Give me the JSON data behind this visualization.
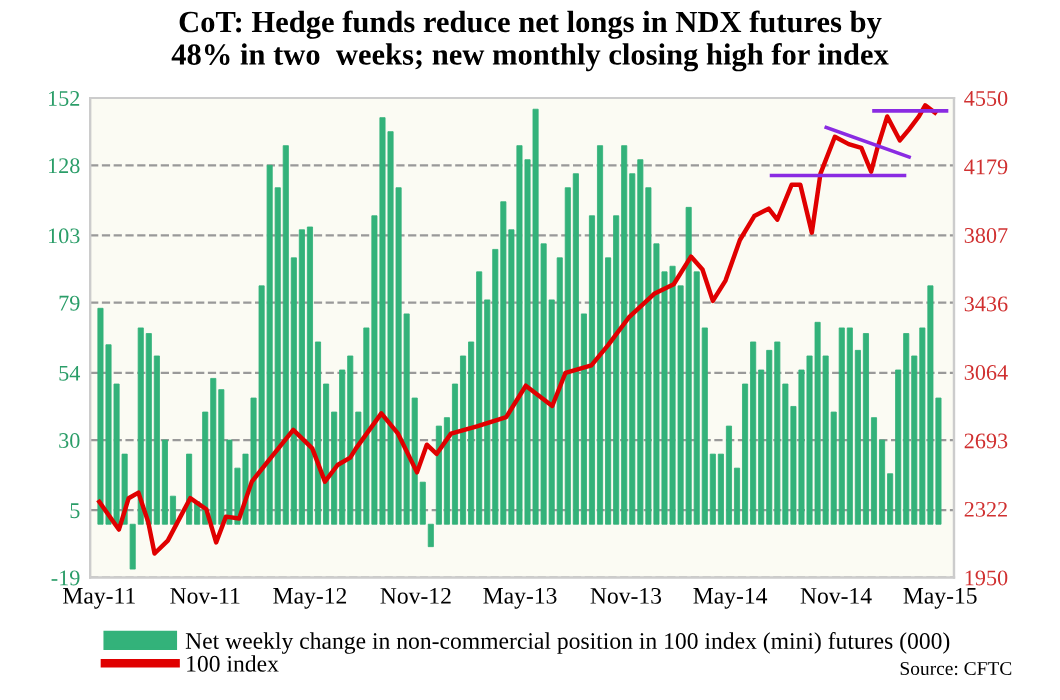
{
  "chart_data": {
    "type": "bar",
    "title": "CoT: Hedge funds reduce net longs in NDX futures by\n48% in two  weeks; new monthly closing high for index",
    "x": [
      "2011-05-03",
      "2011-05-17",
      "2011-05-31",
      "2011-06-14",
      "2011-06-28",
      "2011-07-12",
      "2011-07-26",
      "2011-08-09",
      "2011-08-23",
      "2011-09-06",
      "2011-09-20",
      "2011-10-04",
      "2011-10-18",
      "2011-11-01",
      "2011-11-15",
      "2011-11-29",
      "2011-12-13",
      "2011-12-27",
      "2012-01-10",
      "2012-01-24",
      "2012-02-07",
      "2012-02-21",
      "2012-03-06",
      "2012-03-20",
      "2012-04-03",
      "2012-04-17",
      "2012-05-01",
      "2012-05-15",
      "2012-05-29",
      "2012-06-12",
      "2012-06-26",
      "2012-07-10",
      "2012-07-24",
      "2012-08-07",
      "2012-08-21",
      "2012-09-04",
      "2012-09-18",
      "2012-10-02",
      "2012-10-16",
      "2012-10-30",
      "2012-11-13",
      "2012-11-27",
      "2012-12-11",
      "2012-12-25",
      "2013-01-08",
      "2013-01-22",
      "2013-02-05",
      "2013-02-19",
      "2013-03-05",
      "2013-03-19",
      "2013-04-02",
      "2013-04-16",
      "2013-04-30",
      "2013-05-14",
      "2013-05-28",
      "2013-06-11",
      "2013-06-25",
      "2013-07-09",
      "2013-07-23",
      "2013-08-06",
      "2013-08-20",
      "2013-09-03",
      "2013-09-17",
      "2013-10-01",
      "2013-10-15",
      "2013-10-29",
      "2013-11-12",
      "2013-11-26",
      "2013-12-10",
      "2013-12-24",
      "2014-01-07",
      "2014-01-21",
      "2014-02-04",
      "2014-02-18",
      "2014-03-04",
      "2014-03-18",
      "2014-04-01",
      "2014-04-15",
      "2014-04-29",
      "2014-05-13",
      "2014-05-27",
      "2014-06-10",
      "2014-06-24",
      "2014-07-08",
      "2014-07-22",
      "2014-08-05",
      "2014-08-19",
      "2014-09-02",
      "2014-09-16",
      "2014-09-30",
      "2014-10-14",
      "2014-10-28",
      "2014-11-11",
      "2014-11-25",
      "2014-12-09",
      "2014-12-23",
      "2015-01-06",
      "2015-01-20",
      "2015-02-03",
      "2015-02-17",
      "2015-03-03",
      "2015-03-17",
      "2015-03-31",
      "2015-04-14",
      "2015-04-28"
    ],
    "series": [
      {
        "name": "Net weekly change in non-commercial position in 100 index (mini) futures (000)",
        "color": "#33b27a",
        "values": [
          77,
          64,
          50,
          25,
          -16,
          70,
          68,
          60,
          30,
          10,
          null,
          25,
          8,
          40,
          52,
          48,
          30,
          20,
          25,
          45,
          85,
          128,
          120,
          135,
          95,
          105,
          106,
          65,
          50,
          40,
          55,
          60,
          40,
          70,
          110,
          145,
          140,
          120,
          75,
          45,
          15,
          -8,
          35,
          38,
          50,
          60,
          65,
          90,
          80,
          98,
          115,
          105,
          135,
          130,
          148,
          100,
          80,
          95,
          120,
          125,
          75,
          110,
          135,
          95,
          110,
          135,
          125,
          130,
          120,
          100,
          90,
          92,
          85,
          113,
          90,
          70,
          25,
          25,
          35,
          20,
          50,
          65,
          55,
          62,
          65,
          50,
          42,
          55,
          60,
          72,
          60,
          40,
          70,
          70,
          62,
          68,
          38,
          30,
          18,
          55,
          68,
          60,
          70,
          85,
          45
        ]
      },
      {
        "name": "100 index",
        "type": "line",
        "axis": "y2",
        "color": "#e00000",
        "x": [
          "2011-05-01",
          "2011-06-04",
          "2011-06-21",
          "2011-07-08",
          "2011-07-25",
          "2011-08-05",
          "2011-08-28",
          "2011-09-19",
          "2011-10-06",
          "2011-11-03",
          "2011-11-20",
          "2011-12-07",
          "2011-12-30",
          "2012-01-21",
          "2012-02-18",
          "2012-04-02",
          "2012-05-05",
          "2012-05-27",
          "2012-06-18",
          "2012-07-10",
          "2012-07-20",
          "2012-09-02",
          "2012-10-01",
          "2012-11-03",
          "2012-11-20",
          "2012-12-07",
          "2013-01-01",
          "2013-02-15",
          "2013-04-07",
          "2013-05-11",
          "2013-06-26",
          "2013-07-19",
          "2013-09-02",
          "2013-10-01",
          "2013-11-06",
          "2013-12-21",
          "2014-01-23",
          "2014-02-22",
          "2014-03-14",
          "2014-04-01",
          "2014-04-23",
          "2014-05-18",
          "2014-06-12",
          "2014-07-07",
          "2014-07-22",
          "2014-08-16",
          "2014-08-31",
          "2014-09-20",
          "2014-10-05",
          "2014-10-30",
          "2014-11-23",
          "2014-12-15",
          "2015-01-01",
          "2015-01-12",
          "2015-01-29",
          "2015-02-20",
          "2015-03-08",
          "2015-03-25",
          "2015-04-05",
          "2015-04-22"
        ],
        "values": [
          2360,
          2210,
          2380,
          2410,
          2250,
          2080,
          2150,
          2280,
          2380,
          2320,
          2140,
          2280,
          2270,
          2470,
          2580,
          2750,
          2650,
          2470,
          2560,
          2600,
          2650,
          2840,
          2730,
          2520,
          2670,
          2620,
          2730,
          2770,
          2820,
          2990,
          2880,
          3060,
          3100,
          3210,
          3360,
          3490,
          3540,
          3690,
          3620,
          3450,
          3560,
          3780,
          3910,
          3950,
          3890,
          4080,
          4080,
          3820,
          4140,
          4340,
          4300,
          4280,
          4150,
          4280,
          4450,
          4320,
          4380,
          4450,
          4510,
          4470
        ]
      },
      {
        "type": "line",
        "axis": "y2",
        "color": "#8a2be2",
        "x": [
          "2014-07-12",
          "2015-02-28"
        ],
        "values": [
          4130,
          4130
        ]
      },
      {
        "type": "line",
        "axis": "y2",
        "color": "#8a2be2",
        "x": [
          "2014-10-15",
          "2015-03-08"
        ],
        "values": [
          4390,
          4230
        ]
      },
      {
        "type": "line",
        "axis": "y2",
        "color": "#8a2be2",
        "x": [
          "2015-01-06",
          "2015-05-12"
        ],
        "values": [
          4480,
          4480
        ]
      }
    ],
    "xlim": [
      "2011-04-15",
      "2015-05-25"
    ],
    "xticks": [
      {
        "value": "2011-05-01",
        "label": "May-11"
      },
      {
        "value": "2011-11-01",
        "label": "Nov-11"
      },
      {
        "value": "2012-05-01",
        "label": "May-12"
      },
      {
        "value": "2012-11-01",
        "label": "Nov-12"
      },
      {
        "value": "2013-05-01",
        "label": "May-13"
      },
      {
        "value": "2013-11-01",
        "label": "Nov-13"
      },
      {
        "value": "2014-05-01",
        "label": "May-14"
      },
      {
        "value": "2014-11-01",
        "label": "Nov-14"
      },
      {
        "value": "2015-05-01",
        "label": "May-15"
      }
    ],
    "ylim": [
      -19,
      152
    ],
    "yticks": [
      152,
      128,
      103,
      79,
      54,
      30,
      5,
      -19
    ],
    "y2lim": [
      1950,
      4550
    ],
    "y2ticks": [
      4550,
      4179,
      3807,
      3436,
      3064,
      2693,
      2322,
      1950
    ],
    "grid": "y",
    "legend": "bottom",
    "annotations": [
      "Source: CFTC"
    ]
  }
}
